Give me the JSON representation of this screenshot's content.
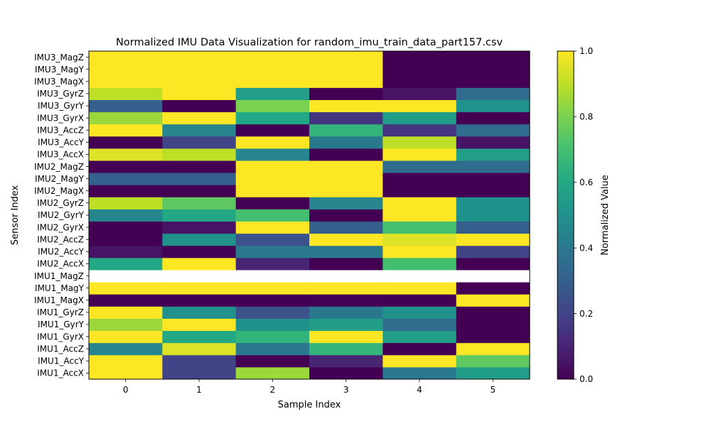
{
  "chart_data": {
    "type": "heatmap",
    "title": "Normalized IMU Data Visualization for random_imu_train_data_part157.csv",
    "xlabel": "Sample Index",
    "ylabel": "Sensor Index",
    "x": [
      0,
      1,
      2,
      3,
      4,
      5
    ],
    "xticks": [
      "0",
      "1",
      "2",
      "3",
      "4",
      "5"
    ],
    "sensors": [
      "IMU1_AccX",
      "IMU1_AccY",
      "IMU1_AccZ",
      "IMU1_GyrX",
      "IMU1_GyrY",
      "IMU1_GyrZ",
      "IMU1_MagX",
      "IMU1_MagY",
      "IMU1_MagZ",
      "IMU2_AccX",
      "IMU2_AccY",
      "IMU2_AccZ",
      "IMU2_GyrX",
      "IMU2_GyrY",
      "IMU2_GyrZ",
      "IMU2_MagX",
      "IMU2_MagY",
      "IMU2_MagZ",
      "IMU3_AccX",
      "IMU3_AccY",
      "IMU3_AccZ",
      "IMU3_GyrX",
      "IMU3_GyrY",
      "IMU3_GyrZ",
      "IMU3_MagX",
      "IMU3_MagY",
      "IMU3_MagZ"
    ],
    "values": [
      [
        1.0,
        0.2,
        0.85,
        0.0,
        0.4,
        0.55
      ],
      [
        1.0,
        0.2,
        0.0,
        0.1,
        1.0,
        0.75
      ],
      [
        0.45,
        0.95,
        0.4,
        0.65,
        0.0,
        1.0
      ],
      [
        1.0,
        0.6,
        0.65,
        1.0,
        0.55,
        0.0
      ],
      [
        0.85,
        1.0,
        0.5,
        0.55,
        0.35,
        0.0
      ],
      [
        1.0,
        0.5,
        0.25,
        0.4,
        0.5,
        0.0
      ],
      [
        0.0,
        0.0,
        0.0,
        0.0,
        0.0,
        1.0
      ],
      [
        1.0,
        1.0,
        1.0,
        1.0,
        1.0,
        0.0
      ],
      [
        null,
        null,
        null,
        null,
        null,
        null
      ],
      [
        0.6,
        1.0,
        0.1,
        0.0,
        0.7,
        0.0
      ],
      [
        0.05,
        0.0,
        0.4,
        0.4,
        1.0,
        0.2
      ],
      [
        0.0,
        0.5,
        0.25,
        1.0,
        0.95,
        1.0
      ],
      [
        0.0,
        0.05,
        1.0,
        0.3,
        0.7,
        0.3
      ],
      [
        0.45,
        0.6,
        0.7,
        0.0,
        1.0,
        0.5
      ],
      [
        0.9,
        0.75,
        0.0,
        0.45,
        1.0,
        0.5
      ],
      [
        0.0,
        0.0,
        1.0,
        1.0,
        0.0,
        0.0
      ],
      [
        0.3,
        0.3,
        1.0,
        1.0,
        0.0,
        0.0
      ],
      [
        0.0,
        0.0,
        1.0,
        1.0,
        0.35,
        0.35
      ],
      [
        0.95,
        0.9,
        0.45,
        0.0,
        1.0,
        0.55
      ],
      [
        0.0,
        0.2,
        1.0,
        0.4,
        0.9,
        0.05
      ],
      [
        1.0,
        0.45,
        0.0,
        0.65,
        0.15,
        0.35
      ],
      [
        0.85,
        1.0,
        0.6,
        0.15,
        0.55,
        0.0
      ],
      [
        0.3,
        0.0,
        0.8,
        1.0,
        1.0,
        0.5
      ],
      [
        0.9,
        1.0,
        0.55,
        0.0,
        0.05,
        0.35
      ],
      [
        1.0,
        1.0,
        1.0,
        1.0,
        0.0,
        0.0
      ],
      [
        1.0,
        1.0,
        1.0,
        1.0,
        0.0,
        0.0
      ],
      [
        1.0,
        1.0,
        1.0,
        1.0,
        0.0,
        0.0
      ]
    ],
    "colorbar": {
      "label": "Normalized Value",
      "range": [
        0.0,
        1.0
      ],
      "ticks": [
        "0.0",
        "0.2",
        "0.4",
        "0.6",
        "0.8",
        "1.0"
      ],
      "colormap": "viridis"
    },
    "grid": false,
    "missing_color": "#ffffff"
  }
}
